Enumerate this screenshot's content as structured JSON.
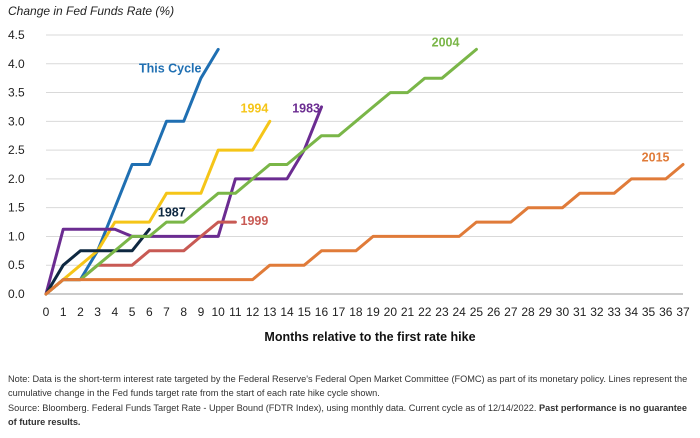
{
  "chart_data": {
    "type": "line",
    "title": "Change in Fed Funds Rate (%)",
    "xlabel": "Months relative to the first rate hike",
    "ylabel": "",
    "xlim": [
      0,
      37
    ],
    "ylim": [
      0,
      4.5
    ],
    "x_ticks": [
      0,
      1,
      2,
      3,
      4,
      5,
      6,
      7,
      8,
      9,
      10,
      11,
      12,
      13,
      14,
      15,
      16,
      17,
      18,
      19,
      20,
      21,
      22,
      23,
      24,
      25,
      26,
      27,
      28,
      29,
      30,
      31,
      32,
      33,
      34,
      35,
      36,
      37
    ],
    "y_ticks": [
      "0.0",
      "0.5",
      "1.0",
      "1.5",
      "2.0",
      "2.5",
      "3.0",
      "3.5",
      "4.0",
      "4.5"
    ],
    "grid": "horizontal",
    "series": [
      {
        "name": "This Cycle",
        "color": "#1f6fb2",
        "x": [
          0,
          1,
          2,
          3,
          4,
          5,
          6,
          7,
          8,
          9,
          10
        ],
        "y": [
          0,
          0.25,
          0.25,
          0.75,
          1.5,
          2.25,
          2.25,
          3.0,
          3.0,
          3.75,
          4.25
        ]
      },
      {
        "name": "1994",
        "color": "#f5c518",
        "x": [
          0,
          1,
          2,
          3,
          4,
          5,
          6,
          7,
          8,
          9,
          10,
          11,
          12,
          13
        ],
        "y": [
          0,
          0.25,
          0.5,
          0.75,
          1.25,
          1.25,
          1.25,
          1.75,
          1.75,
          1.75,
          2.5,
          2.5,
          2.5,
          3.0
        ]
      },
      {
        "name": "1983",
        "color": "#6b2c91",
        "x": [
          0,
          1,
          2,
          3,
          4,
          5,
          6,
          7,
          8,
          9,
          10,
          11,
          12,
          13,
          14,
          15,
          16
        ],
        "y": [
          0,
          1.125,
          1.125,
          1.125,
          1.125,
          1.0,
          1.0,
          1.0,
          1.0,
          1.0,
          1.0,
          2.0,
          2.0,
          2.0,
          2.0,
          2.5,
          3.25
        ]
      },
      {
        "name": "1987",
        "color": "#0e2841",
        "x": [
          0,
          1,
          2,
          3,
          4,
          5,
          6
        ],
        "y": [
          0,
          0.5,
          0.75,
          0.75,
          0.75,
          0.75,
          1.125
        ]
      },
      {
        "name": "1999",
        "color": "#c85a54",
        "x": [
          0,
          1,
          2,
          3,
          4,
          5,
          6,
          7,
          8,
          9,
          10,
          11
        ],
        "y": [
          0,
          0.25,
          0.25,
          0.5,
          0.5,
          0.5,
          0.75,
          0.75,
          0.75,
          1.0,
          1.25,
          1.25
        ]
      },
      {
        "name": "2004",
        "color": "#7ab648",
        "x": [
          0,
          1,
          2,
          3,
          4,
          5,
          6,
          7,
          8,
          9,
          10,
          11,
          12,
          13,
          14,
          15,
          16,
          17,
          18,
          19,
          20,
          21,
          22,
          23,
          24,
          25
        ],
        "y": [
          0,
          0.25,
          0.25,
          0.5,
          0.75,
          1.0,
          1.0,
          1.25,
          1.25,
          1.5,
          1.75,
          1.75,
          2.0,
          2.25,
          2.25,
          2.5,
          2.75,
          2.75,
          3.0,
          3.25,
          3.5,
          3.5,
          3.75,
          3.75,
          4.0,
          4.25
        ]
      },
      {
        "name": "2015",
        "color": "#e07b39",
        "x": [
          0,
          1,
          2,
          3,
          4,
          5,
          6,
          7,
          8,
          9,
          10,
          11,
          12,
          13,
          14,
          15,
          16,
          17,
          18,
          19,
          20,
          21,
          22,
          23,
          24,
          25,
          26,
          27,
          28,
          29,
          30,
          31,
          32,
          33,
          34,
          35,
          36,
          37
        ],
        "y": [
          0,
          0.25,
          0.25,
          0.25,
          0.25,
          0.25,
          0.25,
          0.25,
          0.25,
          0.25,
          0.25,
          0.25,
          0.25,
          0.5,
          0.5,
          0.5,
          0.75,
          0.75,
          0.75,
          1.0,
          1.0,
          1.0,
          1.0,
          1.0,
          1.0,
          1.25,
          1.25,
          1.25,
          1.5,
          1.5,
          1.5,
          1.75,
          1.75,
          1.75,
          2.0,
          2.0,
          2.0,
          2.25
        ]
      }
    ],
    "label_positions": {
      "This Cycle": [
        5.4,
        3.85
      ],
      "1994": [
        11.3,
        3.15
      ],
      "1983": [
        14.3,
        3.15
      ],
      "1987": [
        6.5,
        1.35
      ],
      "1999": [
        11.3,
        1.2
      ],
      "2004": [
        22.4,
        4.3
      ],
      "2015": [
        34.6,
        2.3
      ]
    }
  },
  "notes": {
    "note": "Note: Data is the short-term interest rate targeted by the Federal Reserve's Federal Open Market Committee (FOMC) as part of its monetary policy.  Lines represent the cumulative change in the Fed funds target rate from the start of each rate hike cycle shown.",
    "source": "Source: Bloomberg. Federal Funds Target Rate - Upper Bound (FDTR Index), using monthly data.  Current cycle as of 12/14/2022.",
    "disclaimer": "Past performance is no guarantee of future results."
  }
}
